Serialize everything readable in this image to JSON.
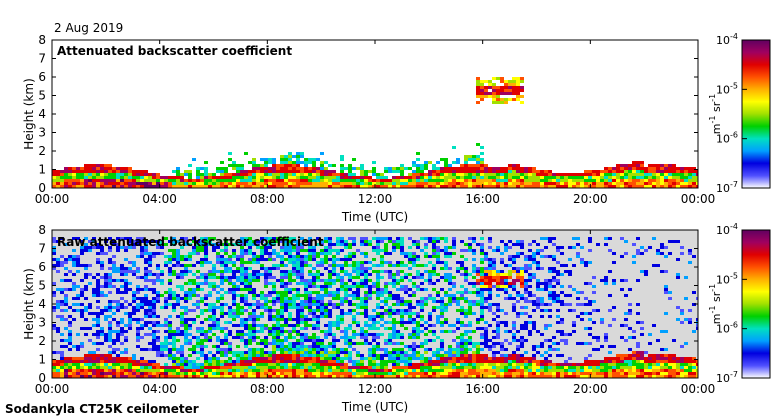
{
  "date_label": "2 Aug 2019",
  "footer": "Sodankyla CT25K ceilometer",
  "colorbar": {
    "unit_base": "m",
    "unit_exp1": "-1",
    "unit_mid": " sr",
    "unit_exp2": "-1",
    "ticks": [
      {
        "base": "10",
        "exp": "-4",
        "value": 0.0001
      },
      {
        "base": "10",
        "exp": "-5",
        "value": 1e-05
      },
      {
        "base": "10",
        "exp": "-6",
        "value": 1e-06
      },
      {
        "base": "10",
        "exp": "-7",
        "value": 1e-07
      }
    ],
    "colors": [
      "#ffffff",
      "#5050ff",
      "#0000e0",
      "#00a0ff",
      "#00e0c0",
      "#00d000",
      "#a0e000",
      "#ffff00",
      "#ffb000",
      "#ff5000",
      "#e00000",
      "#a00060",
      "#600060"
    ]
  },
  "chart_data": [
    {
      "type": "heatmap",
      "title": "Attenuated backscatter coefficient",
      "xlabel": "Time (UTC)",
      "ylabel": "Height (km)",
      "xticks": [
        "00:00",
        "04:00",
        "08:00",
        "12:00",
        "16:00",
        "20:00",
        "00:00"
      ],
      "yticks": [
        "0",
        "1",
        "2",
        "3",
        "4",
        "5",
        "6",
        "7",
        "8"
      ],
      "xlim": [
        0,
        24
      ],
      "ylim": [
        0,
        8
      ],
      "clim": [
        1e-07,
        0.0001
      ],
      "log_color_scale": true,
      "features": [
        {
          "name": "boundary layer",
          "time_range_h": [
            0,
            24
          ],
          "height_km": [
            0,
            1.5
          ]
        },
        {
          "name": "cloud layer",
          "time_range_h": [
            15.8,
            17.6
          ],
          "height_km": [
            4.6,
            6.0
          ]
        }
      ]
    },
    {
      "type": "heatmap",
      "title": "Raw attenuated backscatter coefficient",
      "xlabel": "Time (UTC)",
      "ylabel": "Height (km)",
      "xticks": [
        "00:00",
        "04:00",
        "08:00",
        "12:00",
        "16:00",
        "20:00",
        "00:00"
      ],
      "yticks": [
        "0",
        "1",
        "2",
        "3",
        "4",
        "5",
        "6",
        "7",
        "8"
      ],
      "xlim": [
        0,
        24
      ],
      "ylim": [
        0,
        8
      ],
      "clim": [
        1e-07,
        0.0001
      ],
      "log_color_scale": true,
      "features": [
        {
          "name": "boundary layer",
          "time_range_h": [
            0,
            24
          ],
          "height_km": [
            0,
            1.5
          ]
        },
        {
          "name": "cloud layer",
          "time_range_h": [
            15.8,
            17.6
          ],
          "height_km": [
            4.8,
            5.8
          ]
        },
        {
          "name": "noise",
          "time_range_h": [
            0,
            24
          ],
          "height_km": [
            1.5,
            7.6
          ]
        }
      ]
    }
  ]
}
